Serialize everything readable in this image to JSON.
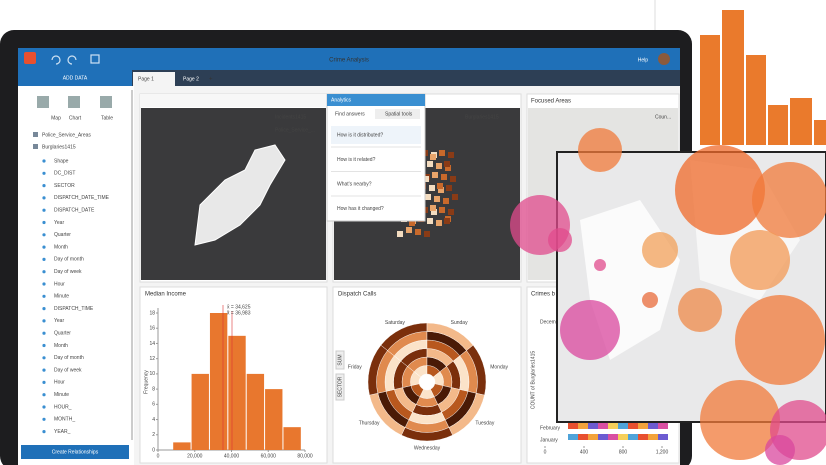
{
  "header": {
    "title": "Crime Analysis",
    "help": "Help",
    "add_data": "ADD DATA",
    "tabs": [
      "Page 1",
      "Page 2"
    ]
  },
  "data_panel": {
    "tools": [
      "Map",
      "Chart",
      "Table"
    ],
    "datasets": [
      "Police_Service_Areas",
      "Burglaries1415"
    ],
    "fields": [
      "Shape",
      "DC_DIST",
      "SECTOR",
      "DISPATCH_DATE_TIME",
      "DISPATCH_DATE",
      "Year",
      "Quarter",
      "Month",
      "Day of month",
      "Day of week",
      "Hour",
      "Minute",
      "DISPATCH_TIME",
      "Year",
      "Quarter",
      "Month",
      "Day of month",
      "Day of week",
      "Hour",
      "Minute",
      "HOUR_",
      "MONTH_",
      "YEAR_"
    ],
    "button": "Create Relationships"
  },
  "maps": {
    "layer_labels": [
      "Incidents1415",
      "Police_Service_...",
      "Burglaries1415"
    ],
    "focused_title": "Focused Areas",
    "legend": "Coun..."
  },
  "analytics": {
    "title": "Analytics",
    "tabs": [
      "Find answers",
      "Spatial tools"
    ],
    "questions": [
      "How is it distributed?",
      "How is it related?",
      "What's nearby?",
      "How has it changed?"
    ]
  },
  "histogram": {
    "type": "histogram",
    "title": "Median Income",
    "y_label": "Frequency",
    "bins": [
      8000,
      18000,
      28000,
      38000,
      48000,
      58000,
      68000,
      78000
    ],
    "values": [
      1,
      10,
      18,
      15,
      10,
      8,
      3
    ],
    "color": "#e8772e",
    "xlim": [
      0,
      80000
    ],
    "xticks": [
      0,
      {
        "value": 20000,
        "label": "20,000"
      },
      {
        "value": 40000,
        "label": "40,000"
      },
      {
        "value": 60000,
        "label": "60,000"
      },
      {
        "value": 80000,
        "label": "80,000"
      }
    ],
    "ylim": [
      0,
      18
    ],
    "yticks": [
      0,
      2,
      4,
      6,
      8,
      10,
      12,
      14,
      16,
      18
    ],
    "annotations": [
      "x̄ = 34,625",
      "x̃ = 36,983"
    ]
  },
  "radial": {
    "type": "radial",
    "title": "Dispatch Calls",
    "categories": [
      "Saturday",
      "Sunday",
      "Monday",
      "Tuesday",
      "Wednesday",
      "Thursday",
      "Friday"
    ],
    "buttons": [
      "SUM",
      "SECTOR"
    ]
  },
  "crimes": {
    "type": "bar",
    "title": "Crimes b",
    "y_label": "COUNT of Burglaries1415",
    "categories": [
      "Decem",
      "February",
      "January"
    ],
    "xlim": [
      0,
      1200
    ],
    "xticks": [
      0,
      400,
      800,
      {
        "value": 1200,
        "label": "1,200"
      }
    ]
  }
}
